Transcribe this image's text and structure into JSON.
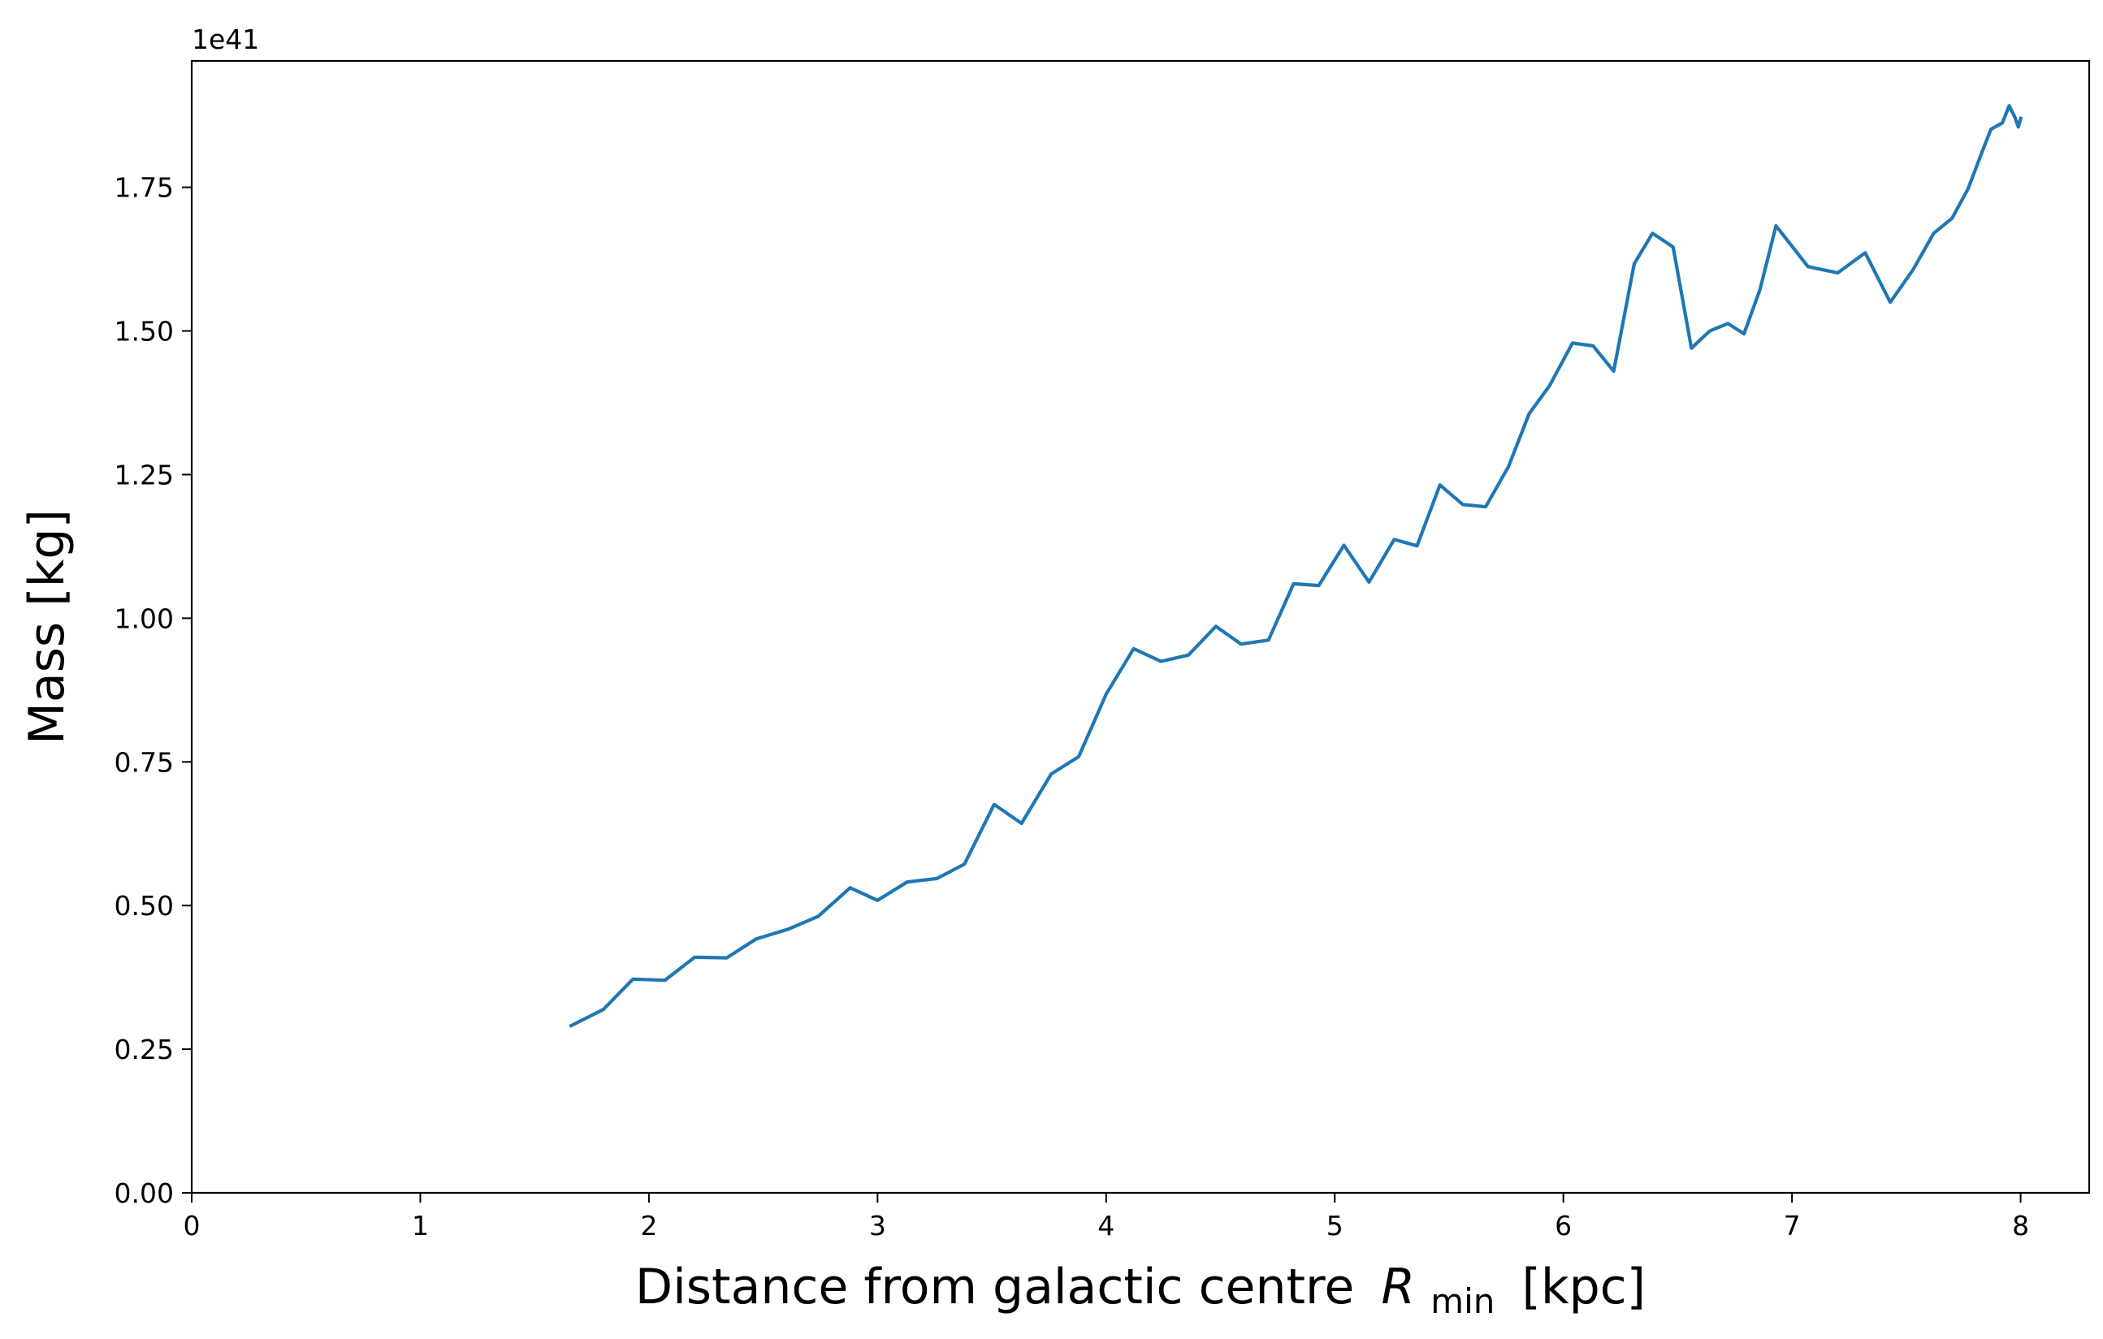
{
  "chart_data": {
    "type": "line",
    "title": "",
    "xlabel": "Distance from galactic centre",
    "xlabel_math": "R",
    "xlabel_sub": "min",
    "xlabel_unit": "[kpc]",
    "ylabel": "Mass [kg]",
    "y_offset_text": "1e41",
    "xlim": [
      0,
      8.3
    ],
    "ylim": [
      0,
      1.97
    ],
    "xticks": [
      0,
      1,
      2,
      3,
      4,
      5,
      6,
      7,
      8
    ],
    "xtick_labels": [
      "0",
      "1",
      "2",
      "3",
      "4",
      "5",
      "6",
      "7",
      "8"
    ],
    "yticks": [
      0,
      0.25,
      0.5,
      0.75,
      1.0,
      1.25,
      1.5,
      1.75
    ],
    "ytick_labels": [
      "0.00",
      "0.25",
      "0.50",
      "0.75",
      "1.00",
      "1.25",
      "1.50",
      "1.75"
    ],
    "grid": false,
    "line_color": "#1f77b4",
    "series": [
      {
        "x": [
          1.66,
          1.8,
          1.93,
          2.07,
          2.2,
          2.34,
          2.47,
          2.61,
          2.74,
          2.88,
          3.0,
          3.13,
          3.26,
          3.38,
          3.51,
          3.63,
          3.76,
          3.88,
          4.0,
          4.12,
          4.24,
          4.36,
          4.48,
          4.59,
          4.71,
          4.82,
          4.93,
          5.04,
          5.15,
          5.26,
          5.36,
          5.46,
          5.56,
          5.66,
          5.76,
          5.85,
          5.94,
          6.04,
          6.13,
          6.22,
          6.31,
          6.39,
          6.48,
          6.56,
          6.64,
          6.72,
          6.79,
          6.86,
          6.93,
          7.07,
          7.2,
          7.32,
          7.43,
          7.53,
          7.62,
          7.7,
          7.77,
          7.83,
          7.87,
          7.92,
          7.95,
          7.975,
          7.99,
          8.0
        ],
        "y": [
          0.291,
          0.319,
          0.372,
          0.37,
          0.41,
          0.409,
          0.442,
          0.459,
          0.481,
          0.531,
          0.509,
          0.541,
          0.547,
          0.572,
          0.676,
          0.643,
          0.729,
          0.759,
          0.868,
          0.947,
          0.925,
          0.936,
          0.986,
          0.955,
          0.962,
          1.06,
          1.057,
          1.127,
          1.063,
          1.137,
          1.126,
          1.232,
          1.198,
          1.194,
          1.264,
          1.356,
          1.405,
          1.479,
          1.474,
          1.43,
          1.617,
          1.67,
          1.646,
          1.47,
          1.5,
          1.513,
          1.495,
          1.572,
          1.683,
          1.612,
          1.601,
          1.636,
          1.55,
          1.607,
          1.67,
          1.696,
          1.747,
          1.81,
          1.851,
          1.862,
          1.892,
          1.872,
          1.855,
          1.87
        ]
      }
    ]
  }
}
